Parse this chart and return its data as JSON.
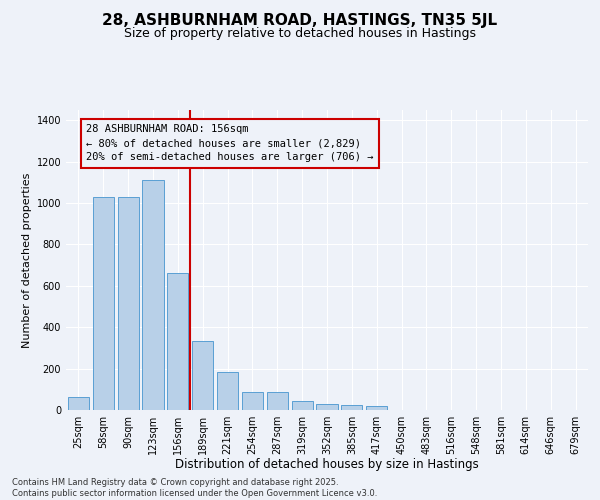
{
  "title": "28, ASHBURNHAM ROAD, HASTINGS, TN35 5JL",
  "subtitle": "Size of property relative to detached houses in Hastings",
  "xlabel": "Distribution of detached houses by size in Hastings",
  "ylabel": "Number of detached properties",
  "categories": [
    "25sqm",
    "58sqm",
    "90sqm",
    "123sqm",
    "156sqm",
    "189sqm",
    "221sqm",
    "254sqm",
    "287sqm",
    "319sqm",
    "352sqm",
    "385sqm",
    "417sqm",
    "450sqm",
    "483sqm",
    "516sqm",
    "548sqm",
    "581sqm",
    "614sqm",
    "646sqm",
    "679sqm"
  ],
  "values": [
    65,
    1030,
    1030,
    1110,
    660,
    335,
    185,
    88,
    88,
    45,
    28,
    25,
    18,
    0,
    0,
    0,
    0,
    0,
    0,
    0,
    0
  ],
  "bar_color": "#b8d0e8",
  "bar_edge_color": "#5a9fd4",
  "vline_color": "#cc0000",
  "annotation_text": "28 ASHBURNHAM ROAD: 156sqm\n← 80% of detached houses are smaller (2,829)\n20% of semi-detached houses are larger (706) →",
  "annotation_box_color": "#cc0000",
  "ylim": [
    0,
    1450
  ],
  "yticks": [
    0,
    200,
    400,
    600,
    800,
    1000,
    1200,
    1400
  ],
  "bg_color": "#eef2f9",
  "grid_color": "#ffffff",
  "footer": "Contains HM Land Registry data © Crown copyright and database right 2025.\nContains public sector information licensed under the Open Government Licence v3.0.",
  "title_fontsize": 11,
  "subtitle_fontsize": 9,
  "xlabel_fontsize": 8.5,
  "ylabel_fontsize": 8,
  "tick_fontsize": 7,
  "annotation_fontsize": 7.5,
  "footer_fontsize": 6
}
